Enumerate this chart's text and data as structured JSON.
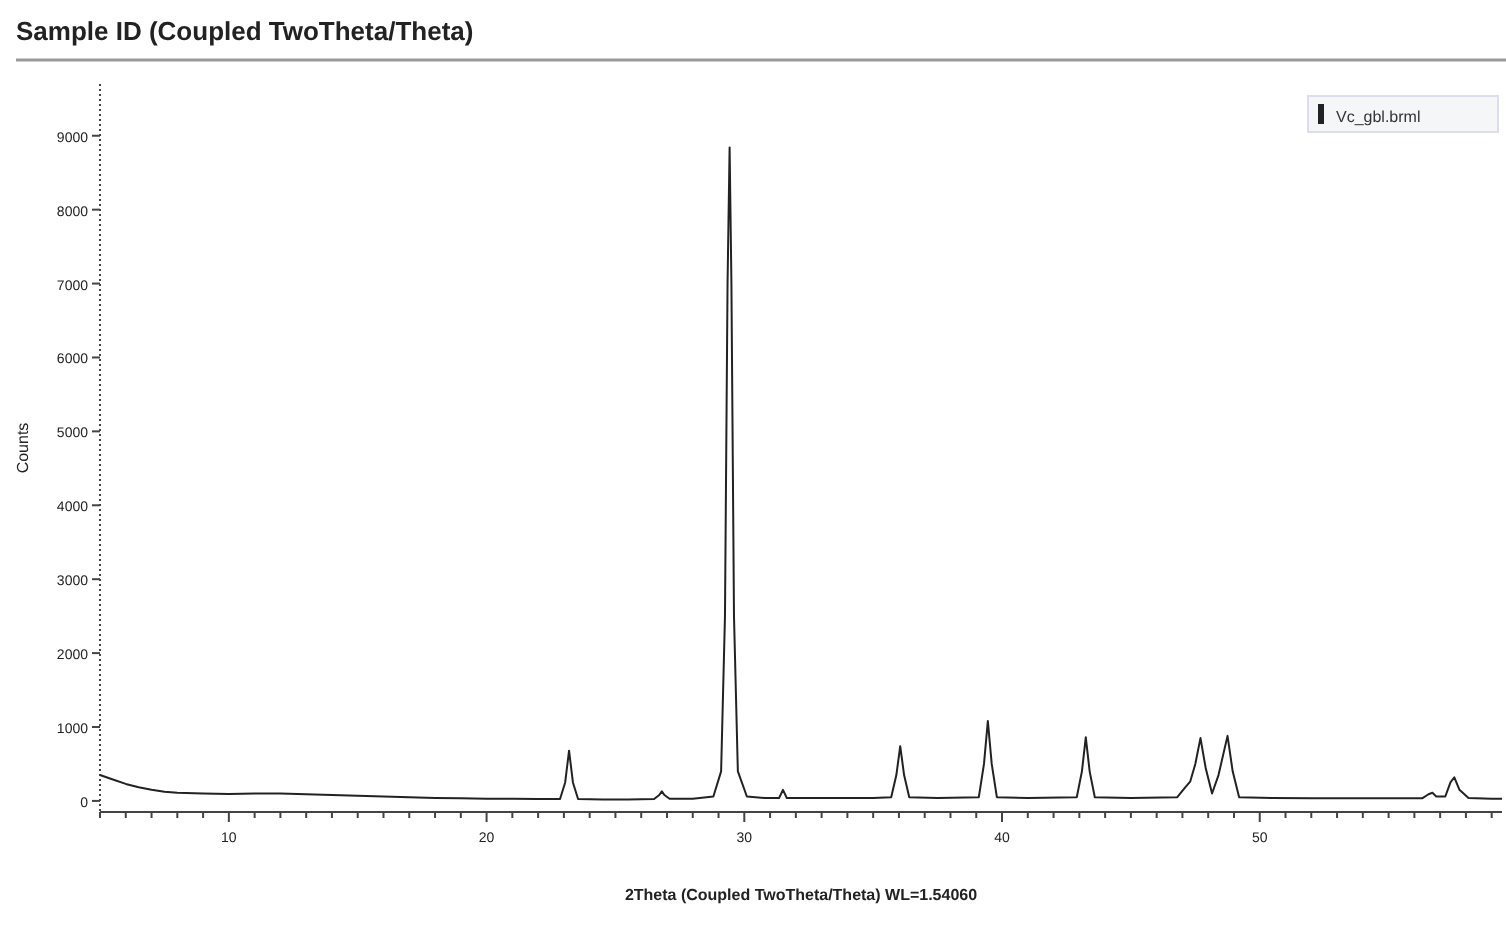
{
  "chart_data": {
    "type": "line",
    "title": "Sample ID (Coupled TwoTheta/Theta)",
    "xlabel": "2Theta (Coupled TwoTheta/Theta) WL=1.54060",
    "ylabel": "Counts",
    "xlim": [
      5,
      59.4
    ],
    "ylim": [
      -150,
      9700
    ],
    "xticks": [
      {
        "value": 5,
        "label": null
      },
      {
        "value": 6,
        "label": null
      },
      {
        "value": 7,
        "label": null
      },
      {
        "value": 8,
        "label": null
      },
      {
        "value": 9,
        "label": null
      },
      10,
      {
        "value": 11,
        "label": null
      },
      {
        "value": 12,
        "label": null
      },
      {
        "value": 13,
        "label": null
      },
      {
        "value": 14,
        "label": null
      },
      {
        "value": 15,
        "label": null
      },
      {
        "value": 16,
        "label": null
      },
      {
        "value": 17,
        "label": null
      },
      {
        "value": 18,
        "label": null
      },
      {
        "value": 19,
        "label": null
      },
      20,
      {
        "value": 21,
        "label": null
      },
      {
        "value": 22,
        "label": null
      },
      {
        "value": 23,
        "label": null
      },
      {
        "value": 24,
        "label": null
      },
      {
        "value": 25,
        "label": null
      },
      {
        "value": 26,
        "label": null
      },
      {
        "value": 27,
        "label": null
      },
      {
        "value": 28,
        "label": null
      },
      {
        "value": 29,
        "label": null
      },
      30,
      {
        "value": 31,
        "label": null
      },
      {
        "value": 32,
        "label": null
      },
      {
        "value": 33,
        "label": null
      },
      {
        "value": 34,
        "label": null
      },
      {
        "value": 35,
        "label": null
      },
      {
        "value": 36,
        "label": null
      },
      {
        "value": 37,
        "label": null
      },
      {
        "value": 38,
        "label": null
      },
      {
        "value": 39,
        "label": null
      },
      40,
      {
        "value": 41,
        "label": null
      },
      {
        "value": 42,
        "label": null
      },
      {
        "value": 43,
        "label": null
      },
      {
        "value": 44,
        "label": null
      },
      {
        "value": 45,
        "label": null
      },
      {
        "value": 46,
        "label": null
      },
      {
        "value": 47,
        "label": null
      },
      {
        "value": 48,
        "label": null
      },
      {
        "value": 49,
        "label": null
      },
      50,
      {
        "value": 51,
        "label": null
      },
      {
        "value": 52,
        "label": null
      },
      {
        "value": 53,
        "label": null
      },
      {
        "value": 54,
        "label": null
      },
      {
        "value": 55,
        "label": null
      },
      {
        "value": 56,
        "label": null
      },
      {
        "value": 57,
        "label": null
      },
      {
        "value": 58,
        "label": null
      },
      {
        "value": 59,
        "label": null
      }
    ],
    "yticks": [
      0,
      1000,
      2000,
      3000,
      4000,
      5000,
      6000,
      7000,
      8000,
      9000
    ],
    "grid": false,
    "legend": "top right",
    "marker": "none",
    "line_style": "solid",
    "series": [
      {
        "name": "Vc_gbl.brml",
        "color": "#222222",
        "x": [
          5,
          5.5,
          6,
          6.5,
          7,
          7.5,
          8,
          9,
          10,
          11,
          12,
          13,
          14,
          15,
          16,
          17,
          18,
          19,
          20,
          21,
          22,
          22.85,
          23.05,
          23.2,
          23.35,
          23.55,
          24.5,
          25.5,
          26.5,
          26.7,
          26.8,
          26.9,
          27.1,
          28,
          28.8,
          29.1,
          29.25,
          29.35,
          29.43,
          29.5,
          29.6,
          29.75,
          30.1,
          30.8,
          31.35,
          31.5,
          31.65,
          33,
          35,
          35.7,
          35.9,
          36.05,
          36.2,
          36.4,
          37.5,
          39.1,
          39.3,
          39.45,
          39.6,
          39.8,
          41,
          42.9,
          43.1,
          43.25,
          43.4,
          43.6,
          45,
          46.8,
          47.1,
          47.3,
          47.5,
          47.7,
          47.9,
          48.15,
          48.4,
          48.75,
          48.95,
          49.2,
          50.5,
          52,
          54,
          56.3,
          56.55,
          56.7,
          56.85,
          57.2,
          57.4,
          57.55,
          57.75,
          58.1,
          59,
          59.4
        ],
        "values": [
          350,
          290,
          230,
          185,
          150,
          125,
          110,
          100,
          95,
          100,
          100,
          90,
          80,
          70,
          60,
          50,
          40,
          35,
          30,
          30,
          25,
          25,
          250,
          680,
          250,
          25,
          20,
          20,
          25,
          80,
          130,
          80,
          30,
          30,
          60,
          400,
          2500,
          7000,
          8840,
          7000,
          2500,
          400,
          60,
          40,
          40,
          150,
          40,
          40,
          40,
          50,
          350,
          740,
          350,
          50,
          40,
          50,
          500,
          1080,
          500,
          50,
          40,
          50,
          400,
          860,
          400,
          50,
          40,
          50,
          180,
          260,
          500,
          850,
          450,
          100,
          350,
          880,
          400,
          50,
          40,
          35,
          35,
          35,
          90,
          110,
          60,
          60,
          250,
          320,
          150,
          40,
          30,
          30
        ]
      }
    ]
  }
}
